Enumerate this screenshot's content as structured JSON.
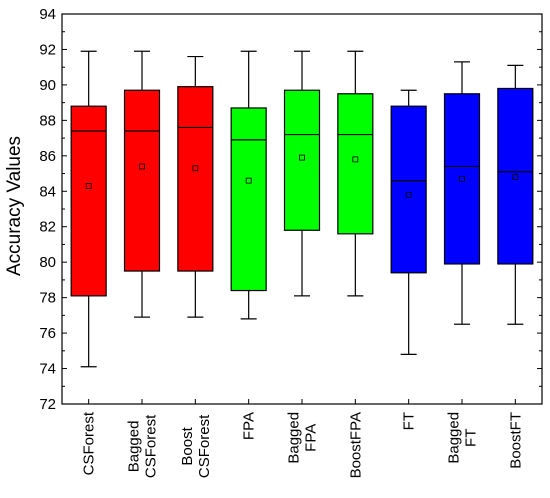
{
  "chart_data": {
    "type": "box",
    "ylabel": "Accuracy Values",
    "xlabel": "",
    "ylim": [
      72,
      94
    ],
    "yticks": [
      "72",
      "74",
      "76",
      "78",
      "80",
      "82",
      "84",
      "86",
      "88",
      "90",
      "92",
      "94"
    ],
    "grid": false,
    "boxes": [
      {
        "label_lines": [
          "CSForest"
        ],
        "color": "#ff0000",
        "whisker_low": 74.1,
        "q1": 78.1,
        "median": 87.4,
        "q3": 88.8,
        "whisker_high": 91.9,
        "mean": 84.3
      },
      {
        "label_lines": [
          "Bagged",
          "CSForest"
        ],
        "color": "#ff0000",
        "whisker_low": 76.9,
        "q1": 79.5,
        "median": 87.4,
        "q3": 89.7,
        "whisker_high": 91.9,
        "mean": 85.4
      },
      {
        "label_lines": [
          "Boost",
          "CSForest"
        ],
        "color": "#ff0000",
        "whisker_low": 76.9,
        "q1": 79.5,
        "median": 87.6,
        "q3": 89.9,
        "whisker_high": 91.6,
        "mean": 85.3
      },
      {
        "label_lines": [
          "FPA"
        ],
        "color": "#00ff00",
        "whisker_low": 76.8,
        "q1": 78.4,
        "median": 86.9,
        "q3": 88.7,
        "whisker_high": 91.9,
        "mean": 84.6
      },
      {
        "label_lines": [
          "Bagged",
          "FPA"
        ],
        "color": "#00ff00",
        "whisker_low": 78.1,
        "q1": 81.8,
        "median": 87.2,
        "q3": 89.7,
        "whisker_high": 91.9,
        "mean": 85.9
      },
      {
        "label_lines": [
          "BoostFPA"
        ],
        "color": "#00ff00",
        "whisker_low": 78.1,
        "q1": 81.6,
        "median": 87.2,
        "q3": 89.5,
        "whisker_high": 91.9,
        "mean": 85.8
      },
      {
        "label_lines": [
          "FT"
        ],
        "color": "#0000ff",
        "whisker_low": 74.8,
        "q1": 79.4,
        "median": 84.6,
        "q3": 88.8,
        "whisker_high": 89.7,
        "mean": 83.8
      },
      {
        "label_lines": [
          "Bagged",
          "FT"
        ],
        "color": "#0000ff",
        "whisker_low": 76.5,
        "q1": 79.9,
        "median": 85.4,
        "q3": 89.5,
        "whisker_high": 91.3,
        "mean": 84.7
      },
      {
        "label_lines": [
          "BoostFT"
        ],
        "color": "#0000ff",
        "whisker_low": 76.5,
        "q1": 79.9,
        "median": 85.1,
        "q3": 89.8,
        "whisker_high": 91.1,
        "mean": 84.8
      }
    ]
  }
}
